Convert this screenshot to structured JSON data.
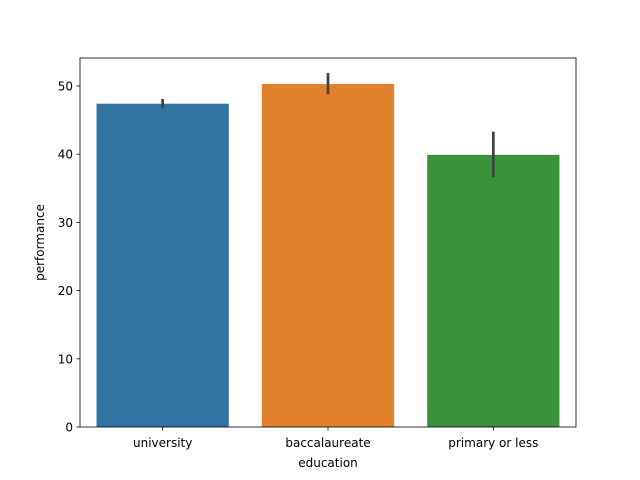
{
  "chart_data": {
    "type": "bar",
    "title": "",
    "xlabel": "education",
    "ylabel": "performance",
    "categories": [
      "university",
      "baccalaureate",
      "primary or less"
    ],
    "values": [
      47.4,
      50.3,
      39.9
    ],
    "error_low": [
      46.7,
      48.8,
      36.6
    ],
    "error_high": [
      48.1,
      51.9,
      43.3
    ],
    "colors": [
      "#3274a1",
      "#e1812c",
      "#3a923a"
    ],
    "errorbar_color": "#424242",
    "ylim": [
      0,
      54.1
    ],
    "yticks": [
      0,
      10,
      20,
      30,
      40,
      50
    ],
    "grid": false,
    "legend": false
  }
}
